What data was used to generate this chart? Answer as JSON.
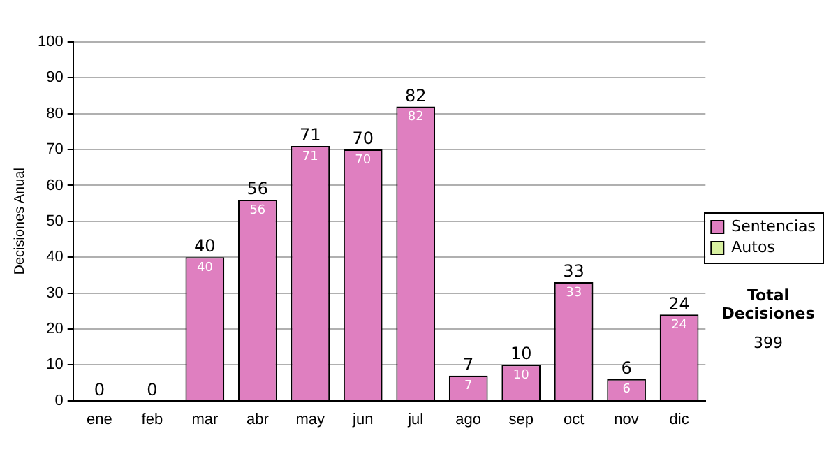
{
  "chart_data": {
    "type": "bar",
    "ylabel": "Decisiones Anual",
    "categories": [
      "ene",
      "feb",
      "mar",
      "abr",
      "may",
      "jun",
      "jul",
      "ago",
      "sep",
      "oct",
      "nov",
      "dic"
    ],
    "series": [
      {
        "name": "Sentencias",
        "color": "#df7fc0",
        "values": [
          0,
          0,
          40,
          56,
          71,
          70,
          82,
          7,
          10,
          33,
          6,
          24
        ],
        "value_labels": [
          null,
          null,
          "40",
          "56",
          "71",
          "70",
          "82",
          "7",
          "10",
          "33",
          "6",
          "24"
        ]
      },
      {
        "name": "Autos",
        "color": "#d8f0a0",
        "values": [
          0,
          0,
          0,
          0,
          0,
          0,
          0,
          0,
          0,
          0,
          0,
          0
        ]
      }
    ],
    "stacked": true,
    "totals": [
      "0",
      "0",
      "40",
      "56",
      "71",
      "70",
      "82",
      "7",
      "10",
      "33",
      "6",
      "24"
    ],
    "ylim": [
      0,
      100
    ],
    "yticks": [
      0,
      10,
      20,
      30,
      40,
      50,
      60,
      70,
      80,
      90,
      100
    ],
    "grid": "y",
    "legend": "right",
    "annotations": [
      "Total Decisiones",
      "399"
    ]
  }
}
